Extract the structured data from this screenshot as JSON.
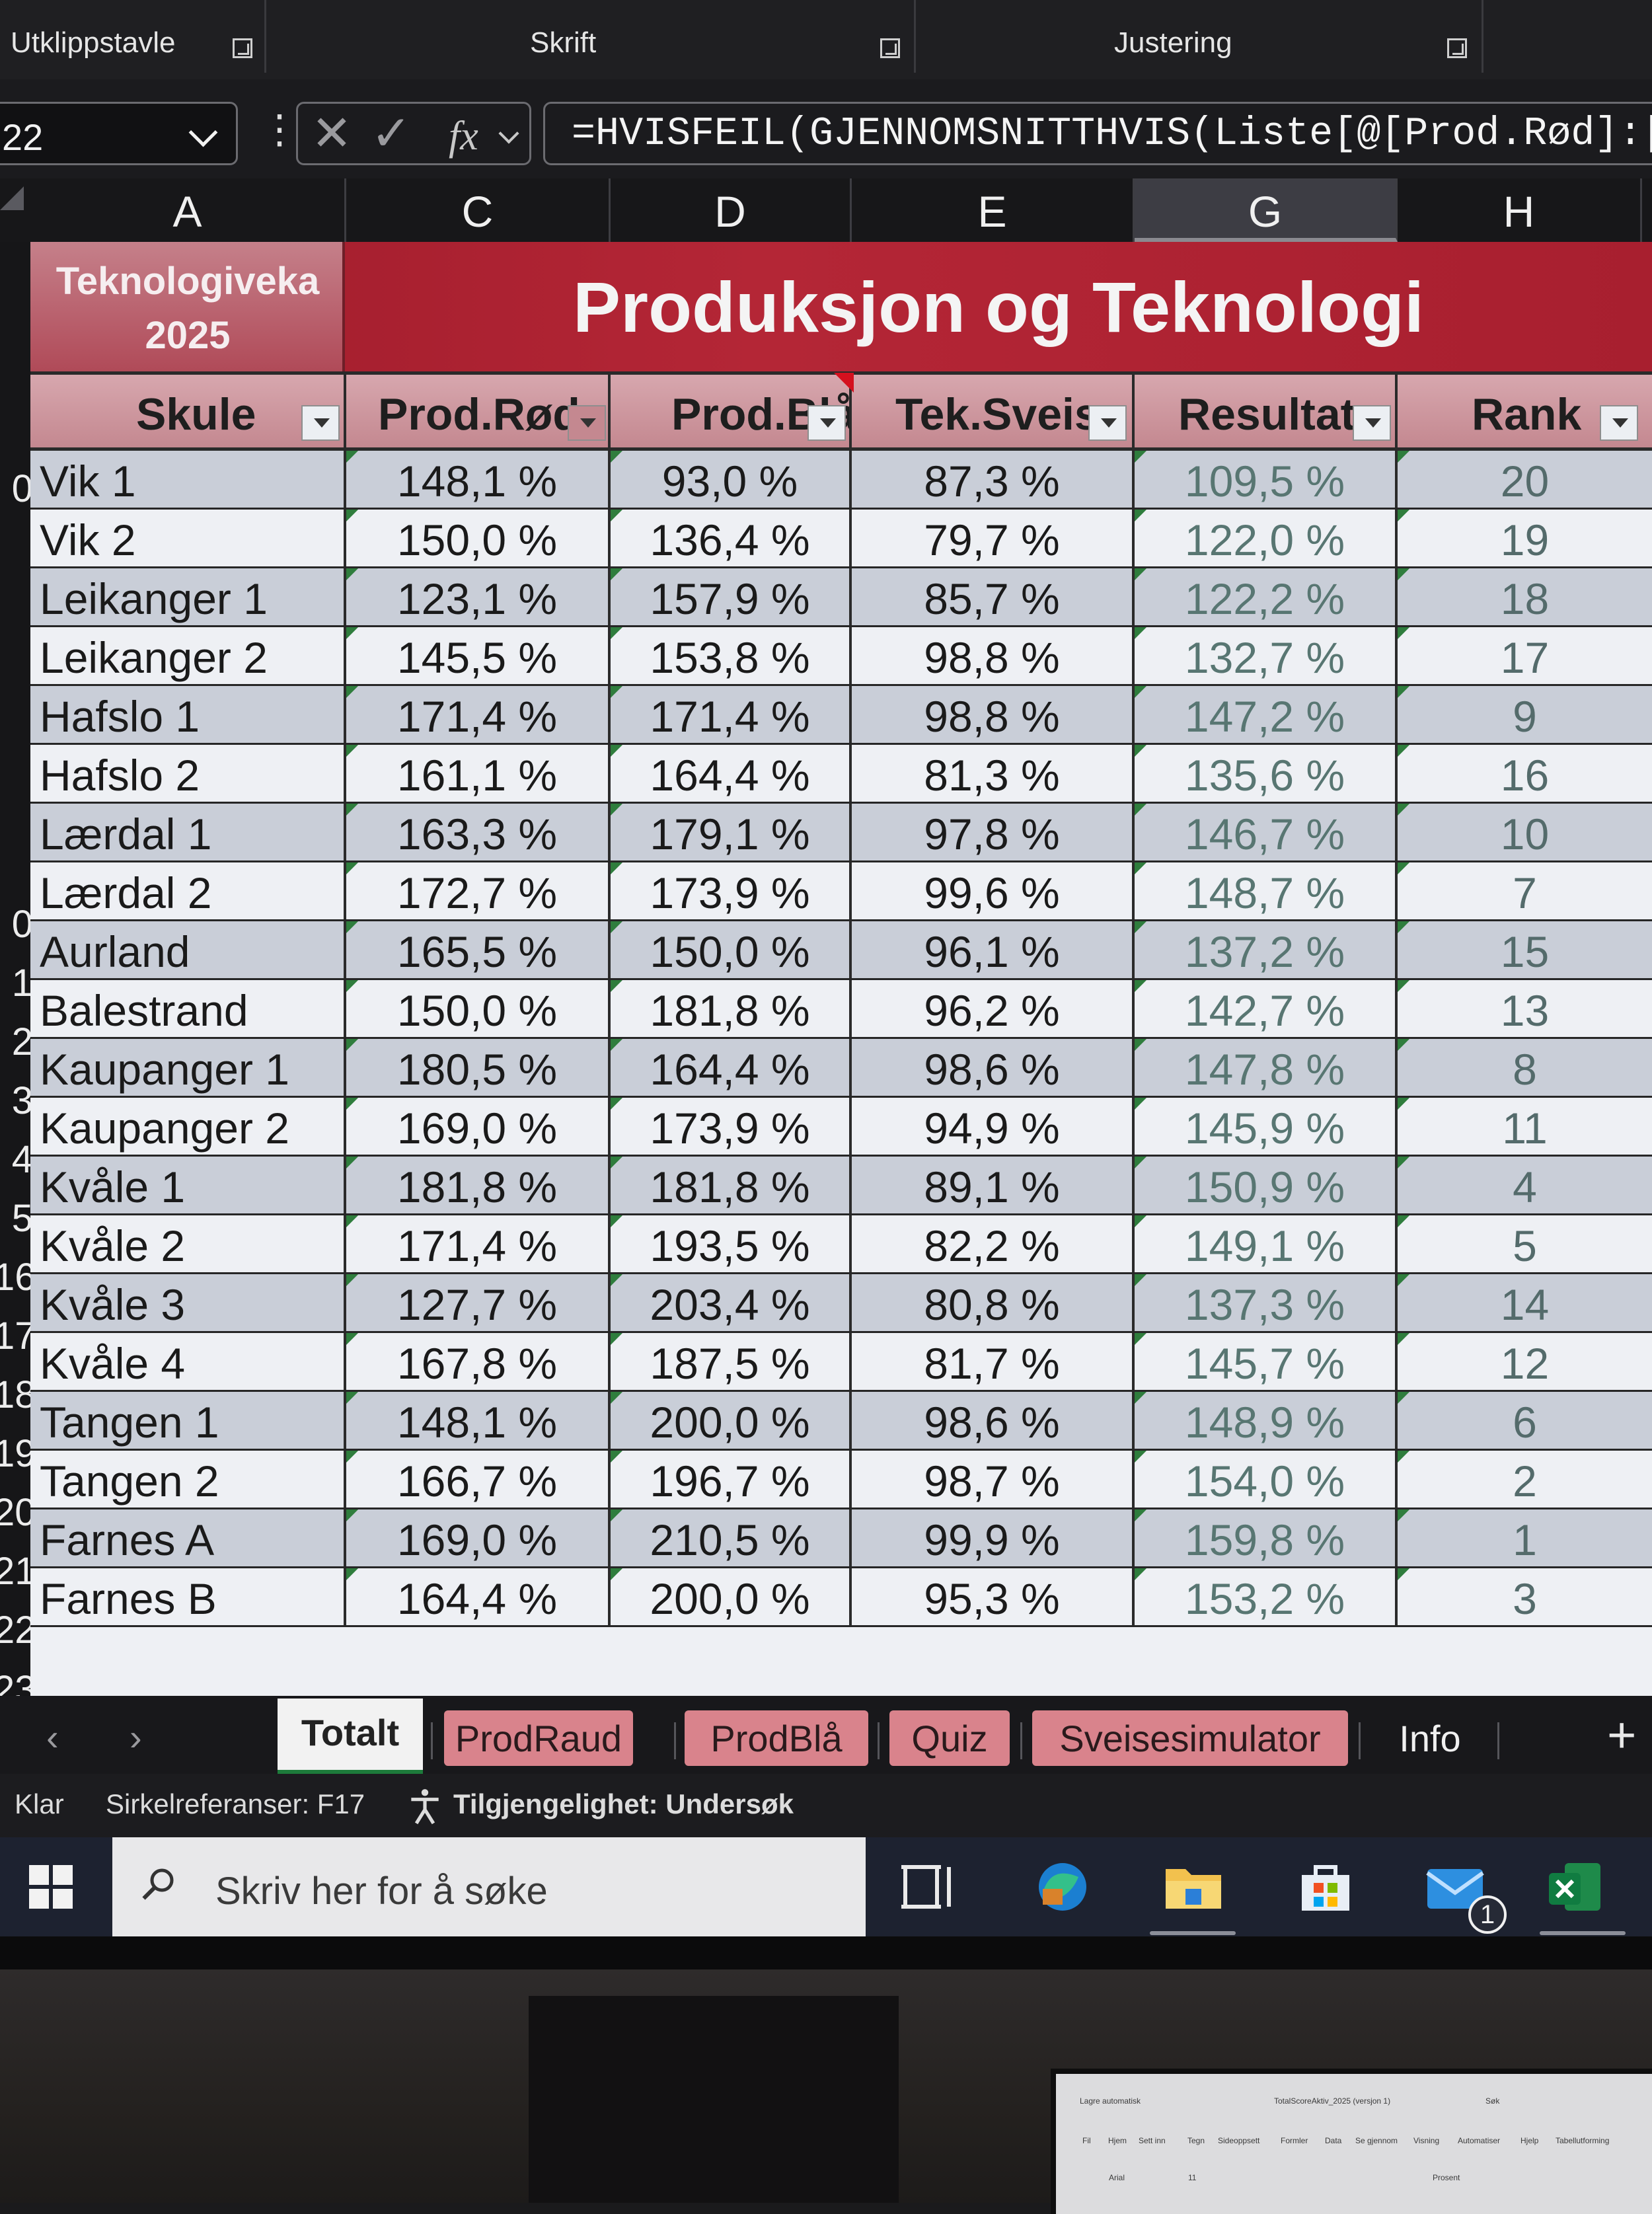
{
  "ribbon": {
    "groups": [
      "Utklippstavle",
      "Skrift",
      "Justering"
    ]
  },
  "formula_bar": {
    "name_box": "22",
    "formula": "=HVISFEIL(GJENNOMSNITTHVIS(Liste[@[Prod.Rød]:[Tek"
  },
  "columns": [
    "A",
    "C",
    "D",
    "E",
    "G",
    "H"
  ],
  "selected_column": "G",
  "row_numbers": [
    "",
    "",
    "",
    "",
    "",
    "",
    "",
    "",
    "",
    "0",
    "1",
    "2",
    "3",
    "4",
    "5",
    "16",
    "17",
    "18",
    "19",
    "20",
    "21",
    "22",
    "23"
  ],
  "banner": {
    "subtitle_line1": "Teknologiveka",
    "subtitle_line2": "2025",
    "title": "Produksjon og Teknologi"
  },
  "table": {
    "headers": [
      "Skule",
      "Prod.Rød",
      "Prod.Blå",
      "Tek.Sveis",
      "Resultat",
      "Rank"
    ],
    "rows": [
      [
        "Vik 1",
        "148,1 %",
        "93,0 %",
        "87,3 %",
        "109,5 %",
        "20"
      ],
      [
        "Vik 2",
        "150,0 %",
        "136,4 %",
        "79,7 %",
        "122,0 %",
        "19"
      ],
      [
        "Leikanger 1",
        "123,1 %",
        "157,9 %",
        "85,7 %",
        "122,2 %",
        "18"
      ],
      [
        "Leikanger 2",
        "145,5 %",
        "153,8 %",
        "98,8 %",
        "132,7 %",
        "17"
      ],
      [
        "Hafslo 1",
        "171,4 %",
        "171,4 %",
        "98,8 %",
        "147,2 %",
        "9"
      ],
      [
        "Hafslo 2",
        "161,1 %",
        "164,4 %",
        "81,3 %",
        "135,6 %",
        "16"
      ],
      [
        "Lærdal 1",
        "163,3 %",
        "179,1 %",
        "97,8 %",
        "146,7 %",
        "10"
      ],
      [
        "Lærdal 2",
        "172,7 %",
        "173,9 %",
        "99,6 %",
        "148,7 %",
        "7"
      ],
      [
        "Aurland",
        "165,5 %",
        "150,0 %",
        "96,1 %",
        "137,2 %",
        "15"
      ],
      [
        "Balestrand",
        "150,0 %",
        "181,8 %",
        "96,2 %",
        "142,7 %",
        "13"
      ],
      [
        "Kaupanger 1",
        "180,5 %",
        "164,4 %",
        "98,6 %",
        "147,8 %",
        "8"
      ],
      [
        "Kaupanger 2",
        "169,0 %",
        "173,9 %",
        "94,9 %",
        "145,9 %",
        "11"
      ],
      [
        "Kvåle 1",
        "181,8 %",
        "181,8 %",
        "89,1 %",
        "150,9 %",
        "4"
      ],
      [
        "Kvåle 2",
        "171,4 %",
        "193,5 %",
        "82,2 %",
        "149,1 %",
        "5"
      ],
      [
        "Kvåle 3",
        "127,7 %",
        "203,4 %",
        "80,8 %",
        "137,3 %",
        "14"
      ],
      [
        "Kvåle 4",
        "167,8 %",
        "187,5 %",
        "81,7 %",
        "145,7 %",
        "12"
      ],
      [
        "Tangen 1",
        "148,1 %",
        "200,0 %",
        "98,6 %",
        "148,9 %",
        "6"
      ],
      [
        "Tangen 2",
        "166,7 %",
        "196,7 %",
        "98,7 %",
        "154,0 %",
        "2"
      ],
      [
        "Farnes A",
        "169,0 %",
        "210,5 %",
        "99,9 %",
        "159,8 %",
        "1"
      ],
      [
        "Farnes B",
        "164,4 %",
        "200,0 %",
        "95,3 %",
        "153,2 %",
        "3"
      ]
    ]
  },
  "sheet_tabs": [
    "Totalt",
    "ProdRaud",
    "ProdBlå",
    "Quiz",
    "Sveisesimulator",
    "Info"
  ],
  "active_tab": "Totalt",
  "status_bar": {
    "ready": "Klar",
    "circular": "Sirkelreferanser: F17",
    "accessibility": "Tilgjengelighet: Undersøk"
  },
  "taskbar": {
    "search_placeholder": "Skriv her for å søke",
    "mail_badge": "1"
  },
  "laptop_screen": {
    "autosave": "Lagre automatisk",
    "filename": "TotalScoreAktiv_2025 (versjon 1)",
    "search": "Søk",
    "menu": [
      "Fil",
      "Hjem",
      "Sett inn",
      "Tegn",
      "Sideoppsett",
      "Formler",
      "Data",
      "Se gjennom",
      "Visning",
      "Automatiser",
      "Hjelp",
      "Tabellutforming"
    ],
    "font": "Arial",
    "font_size": "11",
    "number_format": "Prosent"
  },
  "colors": {
    "banner_red": "#b42636",
    "header_pink": "#d7a7ae",
    "tab_pink": "#d9838c",
    "result_text": "#587672",
    "corner_green": "#2f7d3d"
  }
}
